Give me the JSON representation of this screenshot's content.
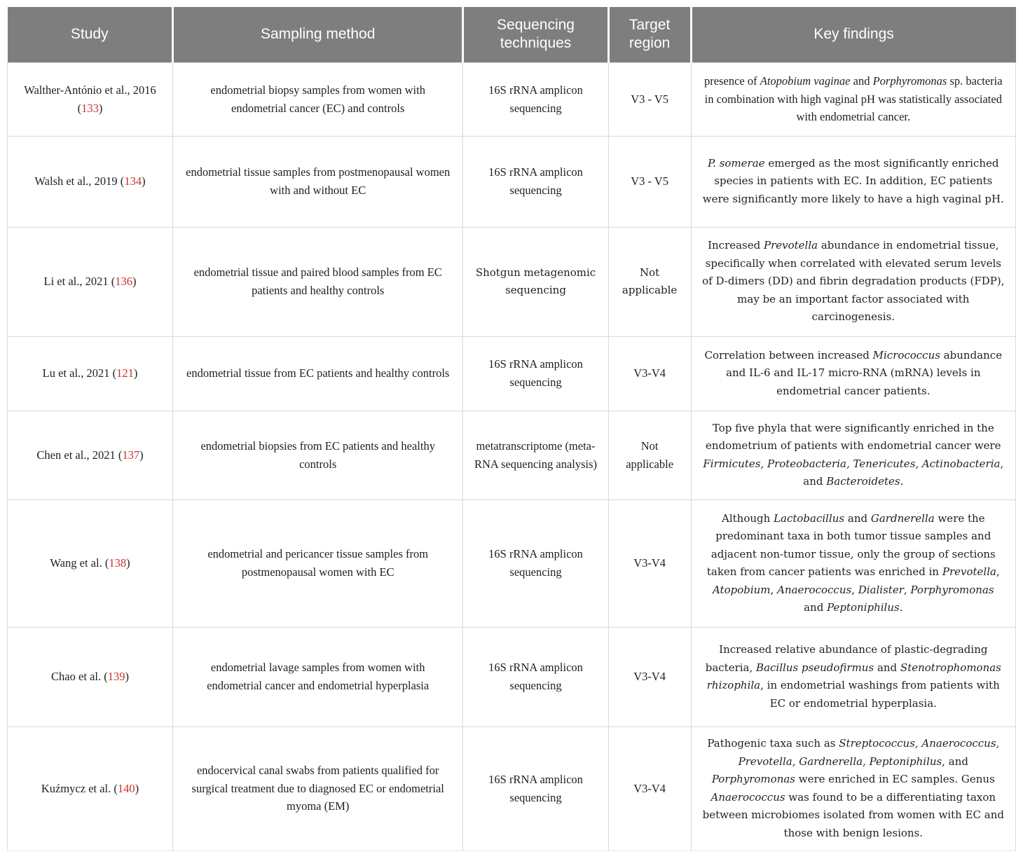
{
  "colors": {
    "header_bg": "#7e7e7e",
    "header_text": "#ffffff",
    "body_text": "#1f1f1f",
    "citation_red": "#c9302c",
    "border": "#d9d9d9"
  },
  "table": {
    "headers": [
      {
        "key": "study",
        "label": "Study"
      },
      {
        "key": "sampling",
        "label": "Sampling method"
      },
      {
        "key": "sequencing",
        "label": "Sequencing\ntechniques"
      },
      {
        "key": "target",
        "label": "Target\nregion"
      },
      {
        "key": "findings",
        "label": "Key findings"
      }
    ],
    "rows": [
      {
        "study": "Walther-António et al., 2016 ([[133]])",
        "sampling": "endometrial biopsy samples from women with endometrial cancer (EC) and controls",
        "sequencing": "16S rRNA amplicon sequencing",
        "target": "V3 - V5",
        "findings": "presence of *Atopobium vaginae* and *Porphyromonas* sp. bacteria in combination with high vaginal pH was statistically associated with endometrial cancer."
      },
      {
        "study": "Walsh et al., 2019 ([[134]])",
        "sampling": "endometrial tissue samples from postmenopausal women with and without EC",
        "sequencing": "16S rRNA amplicon sequencing",
        "target": "V3 - V5",
        "findings": "*P. somerae* emerged as the most significantly enriched species in patients with EC. In addition, EC patients were significantly more likely to have a high vaginal pH."
      },
      {
        "study": "Li et al., 2021 ([[136]])",
        "sampling": "endometrial tissue and paired blood samples from EC patients and healthy controls",
        "sequencing": "Shotgun metagenomic sequencing",
        "target": "Not applicable",
        "findings": "Increased *Prevotella* abundance in endometrial tissue, specifically when correlated with elevated serum levels of D-dimers (DD) and fibrin degradation products (FDP), may be an important factor associated with carcinogenesis."
      },
      {
        "study": "Lu et al., 2021 ([[121]])",
        "sampling": "endometrial tissue from EC patients and healthy controls",
        "sequencing": "16S rRNA amplicon sequencing",
        "target": "V3-V4",
        "findings": "Correlation between increased *Micrococcus* abundance and IL-6 and IL-17 micro-RNA (mRNA) levels in endometrial cancer patients."
      },
      {
        "study": "Chen et al., 2021 ([[137]])",
        "sampling": "endometrial biopsies from EC patients and healthy controls",
        "sequencing": "metatranscriptome (meta-RNA sequencing analysis)",
        "target": "Not applicable",
        "findings": "Top five phyla that were significantly enriched in the endometrium of patients with endometrial cancer were *Firmicutes, Proteobacteria, Tenericutes, Actinobacteria*, and *Bacteroidetes.*"
      },
      {
        "study": "Wang et al. ([[138]])",
        "sampling": "endometrial and pericancer tissue samples from postmenopausal women with EC",
        "sequencing": "16S rRNA amplicon sequencing",
        "target": "V3-V4",
        "findings": "Although *Lactobacillus* and *Gardnerella* were the predominant taxa in both tumor tissue samples and adjacent non-tumor tissue, only the group of sections taken from cancer patients was enriched in *Prevotella*, *Atopobium*, *Anaerococcus*, *Dialister*, *Porphyromonas* and *Peptoniphilus*."
      },
      {
        "study": "Chao et al. ([[139]])",
        "sampling": "endometrial lavage samples from women with endometrial cancer and endometrial hyperplasia",
        "sequencing": "16S rRNA amplicon sequencing",
        "target": "V3-V4",
        "findings": "Increased relative abundance of plastic-degrading bacteria, *Bacillus pseudofirmus* and *Stenotrophomonas rhizophila*, in endometrial washings from patients with EC or endometrial hyperplasia."
      },
      {
        "study": "Kuźmycz et al. ([[140]])",
        "sampling": "endocervical canal swabs from patients qualified for surgical treatment due to diagnosed EC or endometrial myoma (EM)",
        "sequencing": "16S rRNA amplicon sequencing",
        "target": "V3-V4",
        "findings": "Pathogenic taxa such as *Streptococcus, Anaerococcus, Prevotella, Gardnerella, Peptoniphilus*, and *Porphyromonas* were enriched in EC samples. Genus *Anaerococcus* was found to be a differentiating taxon between microbiomes isolated from women with EC and those with benign lesions."
      }
    ]
  }
}
